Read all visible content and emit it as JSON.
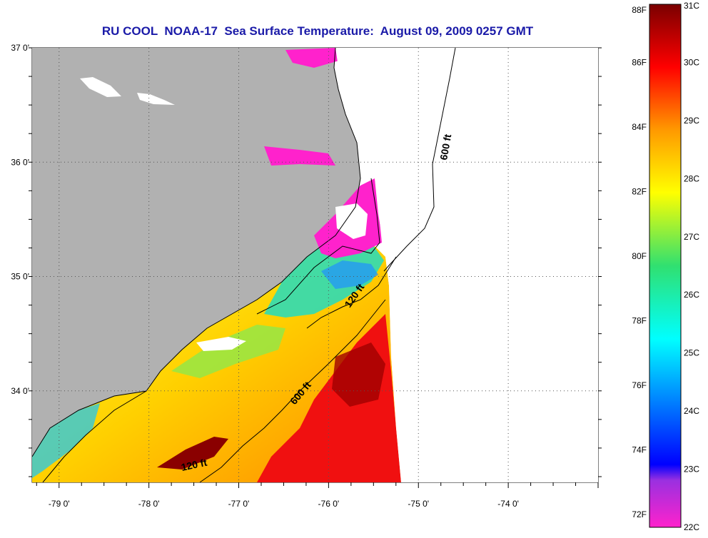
{
  "title": "RU COOL  NOAA-17  Sea Surface Temperature:  August 09, 2009 0257 GMT",
  "map": {
    "lon_range": [
      -79.3,
      -73.0
    ],
    "lat_range": [
      33.2,
      37.0
    ],
    "lat_labels": [
      {
        "value": 37,
        "text": "37 0'"
      },
      {
        "value": 36,
        "text": "36 0'"
      },
      {
        "value": 35,
        "text": "35 0'"
      },
      {
        "value": 34,
        "text": "34 0'"
      }
    ],
    "lon_labels": [
      {
        "value": -79,
        "text": "-79 0'"
      },
      {
        "value": -78,
        "text": "-78 0'"
      },
      {
        "value": -77,
        "text": "-77 0'"
      },
      {
        "value": -76,
        "text": "-76 0'"
      },
      {
        "value": -75,
        "text": "-75 0'"
      },
      {
        "value": -74,
        "text": "-74 0'"
      }
    ],
    "land_color": "#b1b1b1",
    "no_data_color": "#ffffff",
    "contours": [
      {
        "id": "isobath-600-north",
        "text": "600 ft"
      },
      {
        "id": "isobath-120-north",
        "text": "120 ft"
      },
      {
        "id": "isobath-600-south",
        "text": "600 ft"
      },
      {
        "id": "isobath-120-south",
        "text": "120 ft"
      }
    ]
  },
  "colorbar": {
    "min_c": 22,
    "max_c": 31,
    "fahrenheit_labels": [
      "88F",
      "86F",
      "84F",
      "82F",
      "80F",
      "78F",
      "76F",
      "74F",
      "72F"
    ],
    "celsius_labels": [
      "31C",
      "30C",
      "29C",
      "28C",
      "27C",
      "26C",
      "25C",
      "24C",
      "23C",
      "22C"
    ],
    "colors": [
      "#ff22cc",
      "#8a2be2",
      "#0000ff",
      "#00aaff",
      "#00ffff",
      "#22dd88",
      "#ffff00",
      "#ff9900",
      "#ff0000",
      "#7a0000"
    ]
  }
}
